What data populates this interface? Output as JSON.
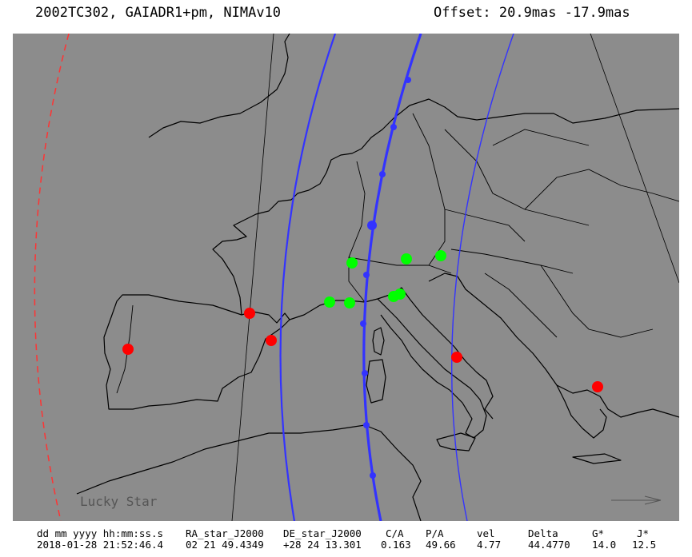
{
  "header": {
    "title": "2002TC302, GAIADR1+pm, NIMAv10",
    "offset": "Offset: 20.9mas -17.9mas"
  },
  "map": {
    "background_color": "#8c8c8c",
    "path_color": "#3333ff",
    "limit_color": "#ff3333",
    "watermark": "Lucky Star"
  },
  "observers": {
    "positive_color": "#00ff00",
    "negative_color": "#ff0000"
  },
  "table": {
    "headers": [
      "dd mm yyyy hh:mm:ss.s",
      "RA_star_J2000",
      "DE_star_J2000",
      "C/A",
      "P/A",
      "vel",
      "Delta",
      "G*",
      "J*"
    ],
    "values": [
      "2018-01-28 21:52:46.4",
      "02 21 49.4349",
      "+28 24 13.301",
      "0.163",
      "49.66",
      "4.77",
      "44.4770",
      "14.0",
      "12.5"
    ]
  }
}
